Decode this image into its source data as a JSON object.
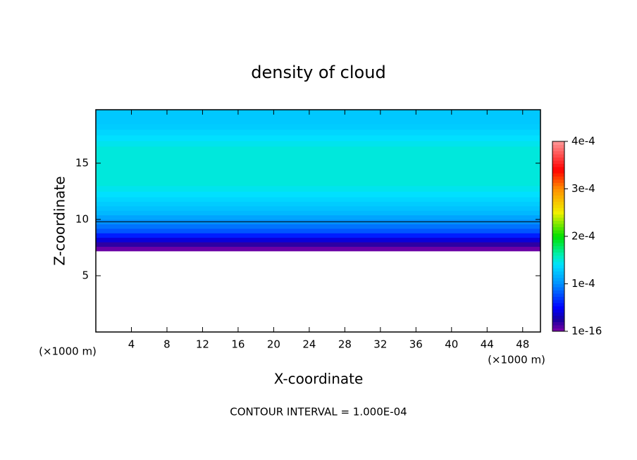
{
  "chart_data": {
    "type": "contour",
    "title": "density of cloud",
    "x_label": "X-coordinate",
    "y_label": "Z-coordinate",
    "x_unit_label": "(×1000 m)",
    "y_unit_label": "(×1000 m)",
    "footnote": "CONTOUR INTERVAL = 1.000E-04",
    "xlim": [
      0,
      50
    ],
    "xticks": [
      4,
      8,
      12,
      16,
      20,
      24,
      28,
      32,
      36,
      40,
      44,
      48
    ],
    "ylim": [
      0,
      19.75
    ],
    "yticks": [
      5,
      10,
      15
    ],
    "y_bins": [
      7.2,
      7.6,
      8.0,
      8.4,
      8.8,
      9.2,
      9.6,
      10.0,
      10.4,
      10.8,
      11.2,
      11.6,
      12.0,
      12.5,
      13.0,
      16.5,
      17.0,
      17.5,
      18.0,
      18.5,
      19.75
    ],
    "values": [
      5e-06,
      2e-05,
      4e-05,
      6e-05,
      8e-05,
      9e-05,
      0.0001,
      0.00011,
      0.00012,
      0.000125,
      0.00013,
      0.000135,
      0.00014,
      0.000145,
      0.00015,
      0.000145,
      0.00014,
      0.000135,
      0.00013,
      0.000128
    ],
    "contour_line_z": 9.8,
    "clim": [
      0,
      0.0004
    ],
    "cticks": [
      {
        "value": 1e-16,
        "label": "1e-16"
      },
      {
        "value": 0.0001,
        "label": "1e-4"
      },
      {
        "value": 0.0002,
        "label": "2e-4"
      },
      {
        "value": 0.0003,
        "label": "3e-4"
      },
      {
        "value": 0.0004,
        "label": "4e-4"
      }
    ],
    "colormap": [
      [
        0,
        "#8000a8"
      ],
      [
        2.5e-05,
        "#1800a0"
      ],
      [
        5e-05,
        "#0000ff"
      ],
      [
        0.0001,
        "#0090ff"
      ],
      [
        0.00014,
        "#00e0ff"
      ],
      [
        0.00016,
        "#00f0b8"
      ],
      [
        0.0002,
        "#00e000"
      ],
      [
        0.00025,
        "#f0f000"
      ],
      [
        0.0003,
        "#ff9000"
      ],
      [
        0.00034,
        "#ff0000"
      ],
      [
        0.0004,
        "#ff9898"
      ]
    ]
  }
}
